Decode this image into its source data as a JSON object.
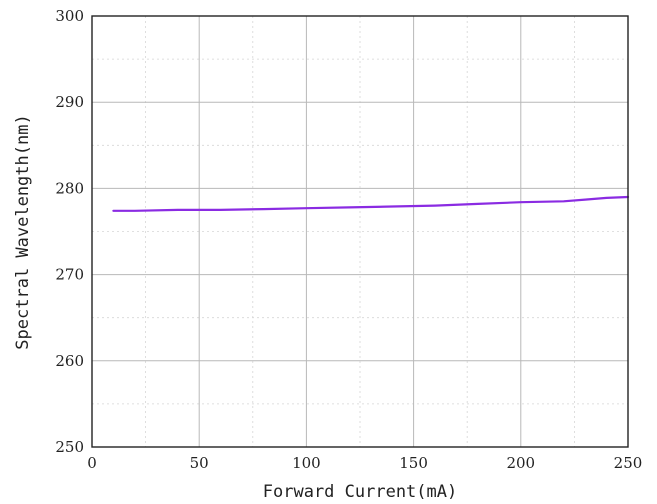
{
  "chart_data": {
    "type": "line",
    "xlabel": "Forward Current(mA)",
    "ylabel": "Spectral Wavelength(nm)",
    "xlim": [
      0,
      250
    ],
    "ylim": [
      250,
      300
    ],
    "x_ticks": [
      0,
      50,
      100,
      150,
      200,
      250
    ],
    "y_ticks": [
      250,
      260,
      270,
      280,
      290,
      300
    ],
    "x_minor_step": 25,
    "y_minor_step": 5,
    "grid": true,
    "line_color": "#8a2be2",
    "series": [
      {
        "x": [
          10,
          20,
          40,
          60,
          80,
          100,
          120,
          140,
          160,
          180,
          200,
          220,
          230,
          240,
          250
        ],
        "values": [
          277.4,
          277.4,
          277.5,
          277.5,
          277.6,
          277.7,
          277.8,
          277.9,
          278.0,
          278.2,
          278.4,
          278.5,
          278.7,
          278.9,
          279.0
        ]
      }
    ]
  }
}
